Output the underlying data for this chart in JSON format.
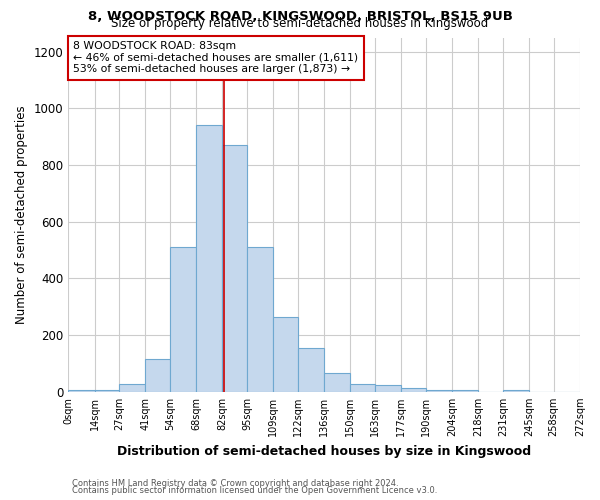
{
  "title1": "8, WOODSTOCK ROAD, KINGSWOOD, BRISTOL, BS15 9UB",
  "title2": "Size of property relative to semi-detached houses in Kingswood",
  "xlabel": "Distribution of semi-detached houses by size in Kingswood",
  "ylabel": "Number of semi-detached properties",
  "footnote1": "Contains HM Land Registry data © Crown copyright and database right 2024.",
  "footnote2": "Contains public sector information licensed under the Open Government Licence v3.0.",
  "bar_edges": [
    0,
    14,
    27,
    41,
    54,
    68,
    82,
    95,
    109,
    122,
    136,
    150,
    163,
    177,
    190,
    204,
    218,
    231,
    245,
    258,
    272
  ],
  "bar_heights": [
    5,
    8,
    27,
    115,
    510,
    940,
    870,
    510,
    265,
    155,
    65,
    27,
    25,
    12,
    8,
    5,
    0,
    5,
    0,
    0
  ],
  "bar_color": "#c5d8ed",
  "bar_edge_color": "#6fa8d0",
  "property_size": 83,
  "vline_color": "#cc0000",
  "annotation_text": "8 WOODSTOCK ROAD: 83sqm\n← 46% of semi-detached houses are smaller (1,611)\n53% of semi-detached houses are larger (1,873) →",
  "annotation_box_color": "#ffffff",
  "annotation_box_edge": "#cc0000",
  "x_tick_labels": [
    "0sqm",
    "14sqm",
    "27sqm",
    "41sqm",
    "54sqm",
    "68sqm",
    "82sqm",
    "95sqm",
    "109sqm",
    "122sqm",
    "136sqm",
    "150sqm",
    "163sqm",
    "177sqm",
    "190sqm",
    "204sqm",
    "218sqm",
    "231sqm",
    "245sqm",
    "258sqm",
    "272sqm"
  ],
  "ylim": [
    0,
    1250
  ],
  "yticks": [
    0,
    200,
    400,
    600,
    800,
    1000,
    1200
  ],
  "bg_color": "#ffffff",
  "grid_color": "#cccccc"
}
